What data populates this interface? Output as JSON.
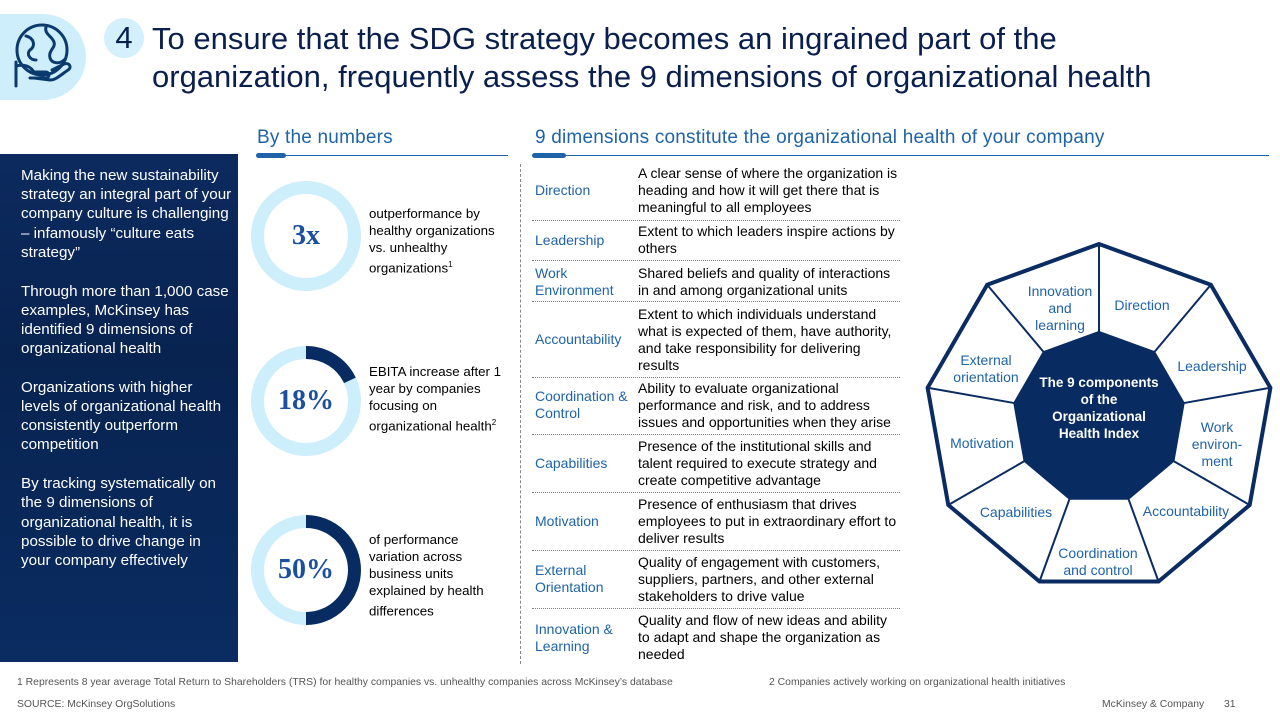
{
  "header": {
    "number": "4",
    "title_line1": "To ensure that the SDG strategy becomes an ingrained part of the",
    "title_line2": "organization, frequently assess the 9 dimensions of organizational health",
    "icon": "globe-in-hand-icon"
  },
  "left_panel": {
    "paragraphs": [
      "Making the new sustainability strategy an integral part of your company culture is challenging – infamously “culture eats strategy”",
      "Through more than 1,000 case examples, McKinsey has identified 9 dimensions of organizational health",
      "Organizations with higher levels of organizational health consistently outperform competition",
      "By tracking systematically on the 9 dimensions of organizational health, it is possible to drive change in your company effectively"
    ]
  },
  "numbers": {
    "title": "By the numbers",
    "items": [
      {
        "value": "3x",
        "fill_fraction": 0.0,
        "description": "outperformance by healthy organizations vs. unhealthy organizations",
        "footnote_mark": "1"
      },
      {
        "value": "18%",
        "fill_fraction": 0.18,
        "description": "EBITA increase after 1 year by companies focusing on organizational health",
        "footnote_mark": "2"
      },
      {
        "value": "50%",
        "fill_fraction": 0.5,
        "description": "of performance variation across business units explained by health differences",
        "footnote_mark": ""
      }
    ]
  },
  "dimensions": {
    "title": "9 dimensions constitute the organizational health of your company",
    "rows": [
      {
        "name": "Direction",
        "description": "A clear sense of where the organization is heading and how it will get there that is meaningful to all employees"
      },
      {
        "name": "Leadership",
        "description": "Extent to which leaders inspire actions by others"
      },
      {
        "name": "Work Environment",
        "description": "Shared beliefs and quality of interactions in and among organizational units"
      },
      {
        "name": "Accountability",
        "description": "Extent to which individuals understand what is expected of them, have authority, and take responsibility for delivering results"
      },
      {
        "name": "Coordination & Control",
        "description": "Ability to evaluate organizational performance and risk, and to address issues and opportunities when they arise"
      },
      {
        "name": "Capabilities",
        "description": "Presence of the institutional skills and talent required to execute strategy and create competitive advantage"
      },
      {
        "name": "Motivation",
        "description": "Presence of enthusiasm that drives employees to put in extraordinary effort to deliver results"
      },
      {
        "name": "External Orientation",
        "description": "Quality of engagement with customers, suppliers, partners, and other external stakeholders to drive value"
      },
      {
        "name": "Innovation & Learning",
        "description": "Quality and flow of new ideas and ability to adapt and shape the organization as needed"
      }
    ]
  },
  "wheel": {
    "center_text": "The 9 components of the Organizational Health Index",
    "segments": [
      "Direction",
      "Leadership",
      "Work environ-ment",
      "Accountability",
      "Coordination and control",
      "Capabilities",
      "Motivation",
      "External orientation",
      "Innovation and learning"
    ]
  },
  "footer": {
    "footnote1": "1 Represents 8 year average Total Return to Shareholders (TRS) for healthy companies vs. unhealthy companies across McKinsey’s database",
    "footnote2": "2 Companies actively working on organizational health initiatives",
    "source": "SOURCE: McKinsey OrgSolutions",
    "company": "McKinsey & Company",
    "page": "31"
  },
  "colors": {
    "navy": "#0b1f4f",
    "accent_blue": "#1f63a8",
    "ring_light": "#cdeefb",
    "ring_dark": "#082c62"
  }
}
